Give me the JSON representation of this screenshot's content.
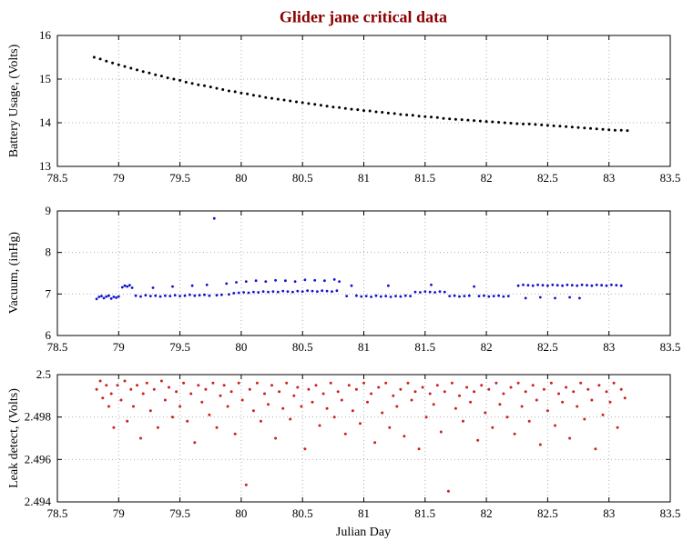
{
  "title": "Glider jane critical data",
  "title_color": "#8b0000",
  "xlabel": "Julian Day",
  "chart_data": [
    {
      "type": "scatter",
      "name": "battery",
      "ylabel": "Battery Usage, (Volts)",
      "color": "#000000",
      "marker_size": 1.5,
      "xlim": [
        78.5,
        83.5
      ],
      "ylim": [
        13,
        16
      ],
      "xticks": [
        78.5,
        79,
        79.5,
        80,
        80.5,
        81,
        81.5,
        82,
        82.5,
        83,
        83.5
      ],
      "xtick_labels": [
        "78.5",
        "79",
        "79.5",
        "80",
        "80.5",
        "81",
        "81.5",
        "82",
        "82.5",
        "83",
        "83.5"
      ],
      "yticks": [
        13,
        14,
        15,
        16
      ],
      "ytick_labels": [
        "13",
        "14",
        "15",
        "16"
      ],
      "grid": true,
      "x_start": 78.8,
      "x_step": 0.05,
      "y": [
        15.5,
        15.46,
        15.41,
        15.37,
        15.33,
        15.29,
        15.25,
        15.21,
        15.17,
        15.14,
        15.1,
        15.07,
        15.03,
        15.0,
        14.97,
        14.93,
        14.9,
        14.87,
        14.85,
        14.82,
        14.79,
        14.76,
        14.73,
        14.71,
        14.68,
        14.66,
        14.63,
        14.61,
        14.58,
        14.56,
        14.54,
        14.52,
        14.5,
        14.48,
        14.46,
        14.44,
        14.42,
        14.4,
        14.38,
        14.36,
        14.35,
        14.33,
        14.31,
        14.3,
        14.28,
        14.27,
        14.25,
        14.24,
        14.22,
        14.21,
        14.19,
        14.18,
        14.17,
        14.15,
        14.14,
        14.13,
        14.12,
        14.1,
        14.09,
        14.08,
        14.07,
        14.06,
        14.05,
        14.04,
        14.03,
        14.02,
        14.01,
        14.0,
        13.99,
        13.98,
        13.97,
        13.97,
        13.96,
        13.95,
        13.94,
        13.93,
        13.92,
        13.91,
        13.9,
        13.89,
        13.88,
        13.87,
        13.86,
        13.85,
        13.84,
        13.83,
        13.83,
        13.82
      ]
    },
    {
      "type": "scatter",
      "name": "vacuum",
      "ylabel": "Vacuum, (inHg)",
      "color": "#1111cc",
      "marker_size": 1.4,
      "xlim": [
        78.5,
        83.5
      ],
      "ylim": [
        6,
        9
      ],
      "xticks": [
        78.5,
        79,
        79.5,
        80,
        80.5,
        81,
        81.5,
        82,
        82.5,
        83,
        83.5
      ],
      "xtick_labels": [
        "78.5",
        "79",
        "79.5",
        "80",
        "80.5",
        "81",
        "81.5",
        "82",
        "82.5",
        "83",
        "83.5"
      ],
      "yticks": [
        6,
        7,
        8,
        9
      ],
      "ytick_labels": [
        "6",
        "7",
        "8",
        "9"
      ],
      "grid": true,
      "points": [
        [
          78.82,
          6.88
        ],
        [
          78.84,
          6.93
        ],
        [
          78.86,
          6.95
        ],
        [
          78.88,
          6.9
        ],
        [
          78.9,
          6.94
        ],
        [
          78.92,
          6.96
        ],
        [
          78.94,
          6.89
        ],
        [
          78.96,
          6.93
        ],
        [
          78.98,
          6.91
        ],
        [
          79.0,
          6.94
        ],
        [
          79.03,
          7.16
        ],
        [
          79.05,
          7.2
        ],
        [
          79.07,
          7.18
        ],
        [
          79.09,
          7.21
        ],
        [
          79.11,
          7.15
        ],
        [
          79.14,
          6.96
        ],
        [
          79.18,
          6.94
        ],
        [
          79.22,
          6.97
        ],
        [
          79.26,
          6.95
        ],
        [
          79.28,
          7.15
        ],
        [
          79.3,
          6.96
        ],
        [
          79.34,
          6.94
        ],
        [
          79.38,
          6.96
        ],
        [
          79.42,
          6.95
        ],
        [
          79.44,
          7.18
        ],
        [
          79.46,
          6.97
        ],
        [
          79.5,
          6.95
        ],
        [
          79.54,
          6.96
        ],
        [
          79.58,
          6.98
        ],
        [
          79.6,
          7.2
        ],
        [
          79.62,
          6.96
        ],
        [
          79.66,
          6.97
        ],
        [
          79.7,
          6.98
        ],
        [
          79.72,
          7.22
        ],
        [
          79.74,
          6.96
        ],
        [
          79.78,
          8.82
        ],
        [
          79.8,
          6.97
        ],
        [
          79.84,
          6.98
        ],
        [
          79.88,
          7.25
        ],
        [
          79.9,
          6.99
        ],
        [
          79.94,
          7.02
        ],
        [
          79.98,
          7.03
        ],
        [
          80.02,
          7.04
        ],
        [
          80.06,
          7.03
        ],
        [
          80.1,
          7.05
        ],
        [
          80.14,
          7.04
        ],
        [
          80.18,
          7.06
        ],
        [
          80.22,
          7.05
        ],
        [
          80.26,
          7.06
        ],
        [
          80.3,
          7.05
        ],
        [
          80.34,
          7.07
        ],
        [
          80.38,
          7.06
        ],
        [
          80.42,
          7.05
        ],
        [
          80.46,
          7.07
        ],
        [
          80.5,
          7.06
        ],
        [
          80.54,
          7.08
        ],
        [
          80.58,
          7.07
        ],
        [
          80.62,
          7.06
        ],
        [
          80.66,
          7.08
        ],
        [
          80.7,
          7.07
        ],
        [
          80.74,
          7.06
        ],
        [
          80.78,
          7.08
        ],
        [
          79.96,
          7.28
        ],
        [
          80.04,
          7.3
        ],
        [
          80.12,
          7.32
        ],
        [
          80.2,
          7.3
        ],
        [
          80.28,
          7.33
        ],
        [
          80.36,
          7.32
        ],
        [
          80.44,
          7.3
        ],
        [
          80.52,
          7.34
        ],
        [
          80.6,
          7.33
        ],
        [
          80.68,
          7.32
        ],
        [
          80.76,
          7.35
        ],
        [
          80.8,
          7.3
        ],
        [
          80.86,
          6.95
        ],
        [
          80.9,
          7.2
        ],
        [
          80.94,
          6.96
        ],
        [
          80.98,
          6.94
        ],
        [
          81.02,
          6.95
        ],
        [
          81.06,
          6.93
        ],
        [
          81.1,
          6.96
        ],
        [
          81.14,
          6.94
        ],
        [
          81.18,
          6.95
        ],
        [
          81.2,
          7.2
        ],
        [
          81.22,
          6.93
        ],
        [
          81.26,
          6.95
        ],
        [
          81.3,
          6.94
        ],
        [
          81.34,
          6.96
        ],
        [
          81.38,
          6.95
        ],
        [
          81.42,
          7.05
        ],
        [
          81.46,
          7.04
        ],
        [
          81.5,
          7.06
        ],
        [
          81.54,
          7.05
        ],
        [
          81.55,
          7.22
        ],
        [
          81.58,
          7.04
        ],
        [
          81.62,
          7.06
        ],
        [
          81.66,
          7.05
        ],
        [
          81.7,
          6.95
        ],
        [
          81.74,
          6.96
        ],
        [
          81.78,
          6.94
        ],
        [
          81.82,
          6.95
        ],
        [
          81.86,
          6.96
        ],
        [
          81.9,
          7.18
        ],
        [
          81.94,
          6.95
        ],
        [
          81.98,
          6.96
        ],
        [
          82.02,
          6.94
        ],
        [
          82.06,
          6.95
        ],
        [
          82.1,
          6.96
        ],
        [
          82.14,
          6.94
        ],
        [
          82.18,
          6.95
        ],
        [
          82.26,
          7.2
        ],
        [
          82.3,
          7.22
        ],
        [
          82.34,
          7.21
        ],
        [
          82.38,
          7.2
        ],
        [
          82.42,
          7.22
        ],
        [
          82.46,
          7.21
        ],
        [
          82.5,
          7.2
        ],
        [
          82.54,
          7.22
        ],
        [
          82.58,
          7.21
        ],
        [
          82.62,
          7.2
        ],
        [
          82.66,
          7.22
        ],
        [
          82.7,
          7.21
        ],
        [
          82.74,
          7.2
        ],
        [
          82.78,
          7.22
        ],
        [
          82.82,
          7.21
        ],
        [
          82.86,
          7.2
        ],
        [
          82.9,
          7.22
        ],
        [
          82.94,
          7.21
        ],
        [
          82.98,
          7.2
        ],
        [
          83.02,
          7.22
        ],
        [
          83.06,
          7.21
        ],
        [
          83.1,
          7.2
        ],
        [
          82.32,
          6.9
        ],
        [
          82.44,
          6.92
        ],
        [
          82.56,
          6.9
        ],
        [
          82.68,
          6.92
        ],
        [
          82.76,
          6.9
        ]
      ]
    },
    {
      "type": "scatter",
      "name": "leak",
      "ylabel": "Leak detect, (Volts)",
      "xlabel": "Julian Day",
      "color": "#cc2222",
      "marker_size": 1.5,
      "xlim": [
        78.5,
        83.5
      ],
      "ylim": [
        2.494,
        2.5
      ],
      "xticks": [
        78.5,
        79,
        79.5,
        80,
        80.5,
        81,
        81.5,
        82,
        82.5,
        83,
        83.5
      ],
      "xtick_labels": [
        "78.5",
        "79",
        "79.5",
        "80",
        "80.5",
        "81",
        "81.5",
        "82",
        "82.5",
        "83",
        "83.5"
      ],
      "yticks": [
        2.494,
        2.496,
        2.498,
        2.5
      ],
      "ytick_labels": [
        "2.494",
        "2.496",
        "2.498",
        "2.5"
      ],
      "grid": true,
      "points": [
        [
          78.82,
          2.4993
        ],
        [
          78.85,
          2.4997
        ],
        [
          78.87,
          2.4989
        ],
        [
          78.9,
          2.4995
        ],
        [
          78.92,
          2.4985
        ],
        [
          78.94,
          2.4991
        ],
        [
          78.96,
          2.4975
        ],
        [
          78.99,
          2.4995
        ],
        [
          79.02,
          2.4988
        ],
        [
          79.05,
          2.4997
        ],
        [
          79.07,
          2.4978
        ],
        [
          79.1,
          2.4993
        ],
        [
          79.12,
          2.4985
        ],
        [
          79.15,
          2.4995
        ],
        [
          79.18,
          2.497
        ],
        [
          79.2,
          2.4991
        ],
        [
          79.23,
          2.4996
        ],
        [
          79.26,
          2.4983
        ],
        [
          79.29,
          2.4993
        ],
        [
          79.32,
          2.4975
        ],
        [
          79.35,
          2.4997
        ],
        [
          79.38,
          2.4988
        ],
        [
          79.41,
          2.4994
        ],
        [
          79.44,
          2.498
        ],
        [
          79.47,
          2.4992
        ],
        [
          79.5,
          2.4985
        ],
        [
          79.53,
          2.4996
        ],
        [
          79.56,
          2.4978
        ],
        [
          79.59,
          2.4991
        ],
        [
          79.62,
          2.4968
        ],
        [
          79.65,
          2.4995
        ],
        [
          79.68,
          2.4987
        ],
        [
          79.71,
          2.4993
        ],
        [
          79.74,
          2.4981
        ],
        [
          79.77,
          2.4996
        ],
        [
          79.8,
          2.4975
        ],
        [
          79.83,
          2.499
        ],
        [
          79.86,
          2.4995
        ],
        [
          79.89,
          2.4985
        ],
        [
          79.92,
          2.4992
        ],
        [
          79.95,
          2.4972
        ],
        [
          79.98,
          2.4996
        ],
        [
          80.01,
          2.4988
        ],
        [
          80.04,
          2.4948
        ],
        [
          80.07,
          2.4993
        ],
        [
          80.1,
          2.4983
        ],
        [
          80.13,
          2.4996
        ],
        [
          80.16,
          2.4978
        ],
        [
          80.19,
          2.4991
        ],
        [
          80.22,
          2.4986
        ],
        [
          80.25,
          2.4995
        ],
        [
          80.28,
          2.497
        ],
        [
          80.31,
          2.4992
        ],
        [
          80.34,
          2.4984
        ],
        [
          80.37,
          2.4996
        ],
        [
          80.4,
          2.4979
        ],
        [
          80.43,
          2.499
        ],
        [
          80.46,
          2.4994
        ],
        [
          80.49,
          2.4985
        ],
        [
          80.52,
          2.4965
        ],
        [
          80.55,
          2.4993
        ],
        [
          80.58,
          2.4987
        ],
        [
          80.61,
          2.4995
        ],
        [
          80.64,
          2.4976
        ],
        [
          80.67,
          2.4991
        ],
        [
          80.7,
          2.4984
        ],
        [
          80.73,
          2.4996
        ],
        [
          80.76,
          2.498
        ],
        [
          80.79,
          2.4992
        ],
        [
          80.82,
          2.4988
        ],
        [
          80.85,
          2.4972
        ],
        [
          80.88,
          2.4995
        ],
        [
          80.91,
          2.4983
        ],
        [
          80.94,
          2.4993
        ],
        [
          80.97,
          2.4977
        ],
        [
          81.0,
          2.4996
        ],
        [
          81.03,
          2.4987
        ],
        [
          81.06,
          2.4991
        ],
        [
          81.09,
          2.4968
        ],
        [
          81.12,
          2.4994
        ],
        [
          81.15,
          2.4982
        ],
        [
          81.18,
          2.4996
        ],
        [
          81.21,
          2.4975
        ],
        [
          81.24,
          2.499
        ],
        [
          81.27,
          2.4985
        ],
        [
          81.3,
          2.4993
        ],
        [
          81.33,
          2.4971
        ],
        [
          81.36,
          2.4996
        ],
        [
          81.39,
          2.4988
        ],
        [
          81.42,
          2.4992
        ],
        [
          81.45,
          2.4965
        ],
        [
          81.48,
          2.4994
        ],
        [
          81.51,
          2.498
        ],
        [
          81.54,
          2.4991
        ],
        [
          81.57,
          2.4986
        ],
        [
          81.6,
          2.4995
        ],
        [
          81.63,
          2.4973
        ],
        [
          81.66,
          2.4992
        ],
        [
          81.69,
          2.4945
        ],
        [
          81.72,
          2.4996
        ],
        [
          81.75,
          2.4984
        ],
        [
          81.78,
          2.499
        ],
        [
          81.81,
          2.4978
        ],
        [
          81.84,
          2.4994
        ],
        [
          81.87,
          2.4987
        ],
        [
          81.9,
          2.4992
        ],
        [
          81.93,
          2.4969
        ],
        [
          81.96,
          2.4995
        ],
        [
          81.99,
          2.4982
        ],
        [
          82.02,
          2.4993
        ],
        [
          82.05,
          2.4975
        ],
        [
          82.08,
          2.4996
        ],
        [
          82.11,
          2.4986
        ],
        [
          82.14,
          2.4991
        ],
        [
          82.17,
          2.498
        ],
        [
          82.2,
          2.4994
        ],
        [
          82.23,
          2.4972
        ],
        [
          82.26,
          2.4996
        ],
        [
          82.29,
          2.4985
        ],
        [
          82.32,
          2.4992
        ],
        [
          82.35,
          2.4978
        ],
        [
          82.38,
          2.4995
        ],
        [
          82.41,
          2.4988
        ],
        [
          82.44,
          2.4967
        ],
        [
          82.47,
          2.4993
        ],
        [
          82.5,
          2.4983
        ],
        [
          82.53,
          2.4996
        ],
        [
          82.56,
          2.4976
        ],
        [
          82.59,
          2.4991
        ],
        [
          82.62,
          2.4987
        ],
        [
          82.65,
          2.4994
        ],
        [
          82.68,
          2.497
        ],
        [
          82.71,
          2.4992
        ],
        [
          82.74,
          2.4985
        ],
        [
          82.77,
          2.4996
        ],
        [
          82.8,
          2.4979
        ],
        [
          82.83,
          2.4993
        ],
        [
          82.86,
          2.4988
        ],
        [
          82.89,
          2.4965
        ],
        [
          82.92,
          2.4995
        ],
        [
          82.95,
          2.4981
        ],
        [
          82.98,
          2.4992
        ],
        [
          83.01,
          2.4987
        ],
        [
          83.04,
          2.4996
        ],
        [
          83.07,
          2.4975
        ],
        [
          83.1,
          2.4993
        ],
        [
          83.13,
          2.4989
        ]
      ]
    }
  ]
}
